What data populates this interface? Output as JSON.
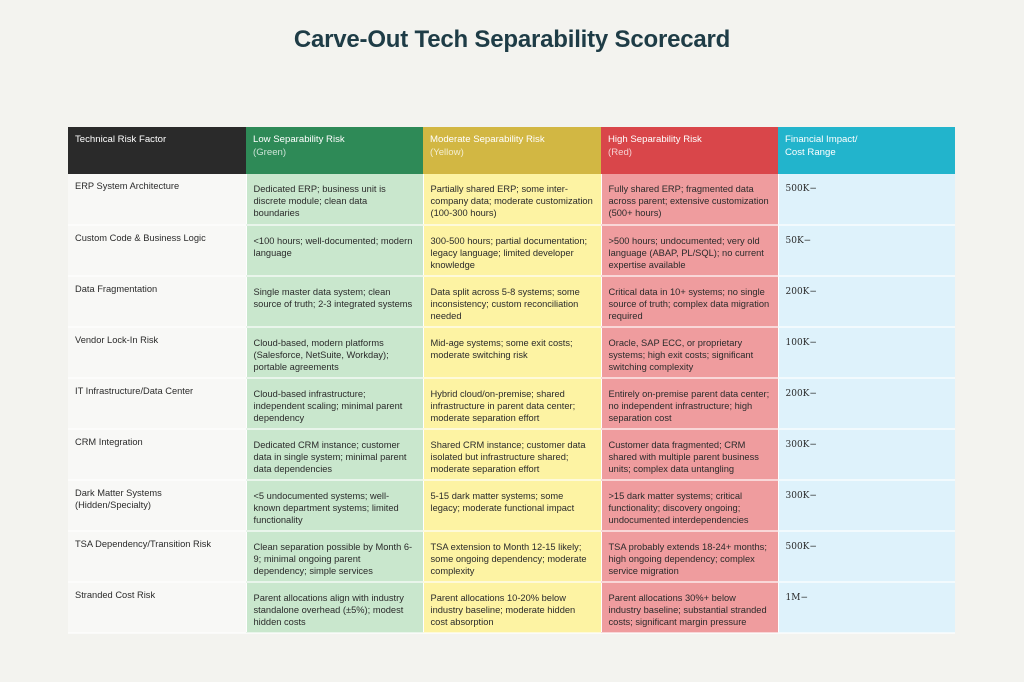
{
  "title": "Carve-Out Tech Separability Scorecard",
  "colors": {
    "header_factor": "#2a2a2a",
    "header_low": "#2e8a57",
    "header_moderate": "#d2b743",
    "header_high": "#d9464a",
    "header_financial": "#22b4cc",
    "cell_low": "#c9e7cd",
    "cell_moderate": "#fdf3a3",
    "cell_high": "#ef9c9e",
    "cell_financial": "#def2fb"
  },
  "headers": [
    {
      "label": "Technical Risk Factor",
      "sub": ""
    },
    {
      "label": "Low Separability Risk",
      "sub": "(Green)"
    },
    {
      "label": "Moderate Separability Risk",
      "sub": "(Yellow)"
    },
    {
      "label": "High Separability Risk",
      "sub": "(Red)"
    },
    {
      "label": "Financial Impact/",
      "sub": "Cost Range"
    }
  ],
  "rows": [
    {
      "factor": "ERP System Architecture",
      "low": "Dedicated ERP; business unit is discrete module; clean data boundaries",
      "moderate": "Partially shared ERP; some inter-company data; moderate customization (100-300 hours)",
      "high": "Fully shared ERP; fragmented data across parent; extensive customization (500+ hours)",
      "financial": "500K−"
    },
    {
      "factor": "Custom Code & Business Logic",
      "low": "<100 hours; well-documented; modern language",
      "moderate": "300-500 hours; partial documentation; legacy language; limited developer knowledge",
      "high": ">500 hours; undocumented; very old language (ABAP, PL/SQL); no current expertise available",
      "financial": "50K−"
    },
    {
      "factor": "Data Fragmentation",
      "low": "Single master data system; clean source of truth; 2-3 integrated systems",
      "moderate": "Data split across 5-8 systems; some inconsistency; custom reconciliation needed",
      "high": "Critical data in 10+ systems; no single source of truth; complex data migration required",
      "financial": "200K−"
    },
    {
      "factor": "Vendor Lock-In Risk",
      "low": "Cloud-based, modern platforms (Salesforce, NetSuite, Workday); portable agreements",
      "moderate": "Mid-age systems; some exit costs; moderate switching risk",
      "high": "Oracle, SAP ECC, or proprietary systems; high exit costs; significant switching complexity",
      "financial": "100K−"
    },
    {
      "factor": "IT Infrastructure/Data Center",
      "low": "Cloud-based infrastructure; independent scaling; minimal parent dependency",
      "moderate": "Hybrid cloud/on-premise; shared infrastructure in parent data center; moderate separation effort",
      "high": "Entirely on-premise parent data center; no independent infrastructure; high separation cost",
      "financial": "200K−"
    },
    {
      "factor": "CRM Integration",
      "low": "Dedicated CRM instance; customer data in single system; minimal parent data dependencies",
      "moderate": "Shared CRM instance; customer data isolated but infrastructure shared; moderate separation effort",
      "high": "Customer data fragmented; CRM shared with multiple parent business units; complex data untangling",
      "financial": "300K−"
    },
    {
      "factor": "Dark Matter Systems (Hidden/Specialty)",
      "low": "<5 undocumented systems; well-known department systems; limited functionality",
      "moderate": "5-15 dark matter systems; some legacy; moderate functional impact",
      "high": ">15 dark matter systems; critical functionality; discovery ongoing; undocumented interdependencies",
      "financial": "300K−"
    },
    {
      "factor": "TSA Dependency/Transition Risk",
      "low": "Clean separation possible by Month 6-9; minimal ongoing parent dependency; simple services",
      "moderate": "TSA extension to Month 12-15 likely; some ongoing dependency; moderate complexity",
      "high": "TSA probably extends 18-24+ months; high ongoing dependency; complex service migration",
      "financial": "500K−"
    },
    {
      "factor": "Stranded Cost Risk",
      "low": "Parent allocations align with industry standalone overhead (±5%); modest hidden costs",
      "moderate": "Parent allocations 10-20% below industry baseline; moderate hidden cost absorption",
      "high": "Parent allocations 30%+ below industry baseline; substantial stranded costs; significant margin pressure",
      "financial": "1M−"
    }
  ]
}
